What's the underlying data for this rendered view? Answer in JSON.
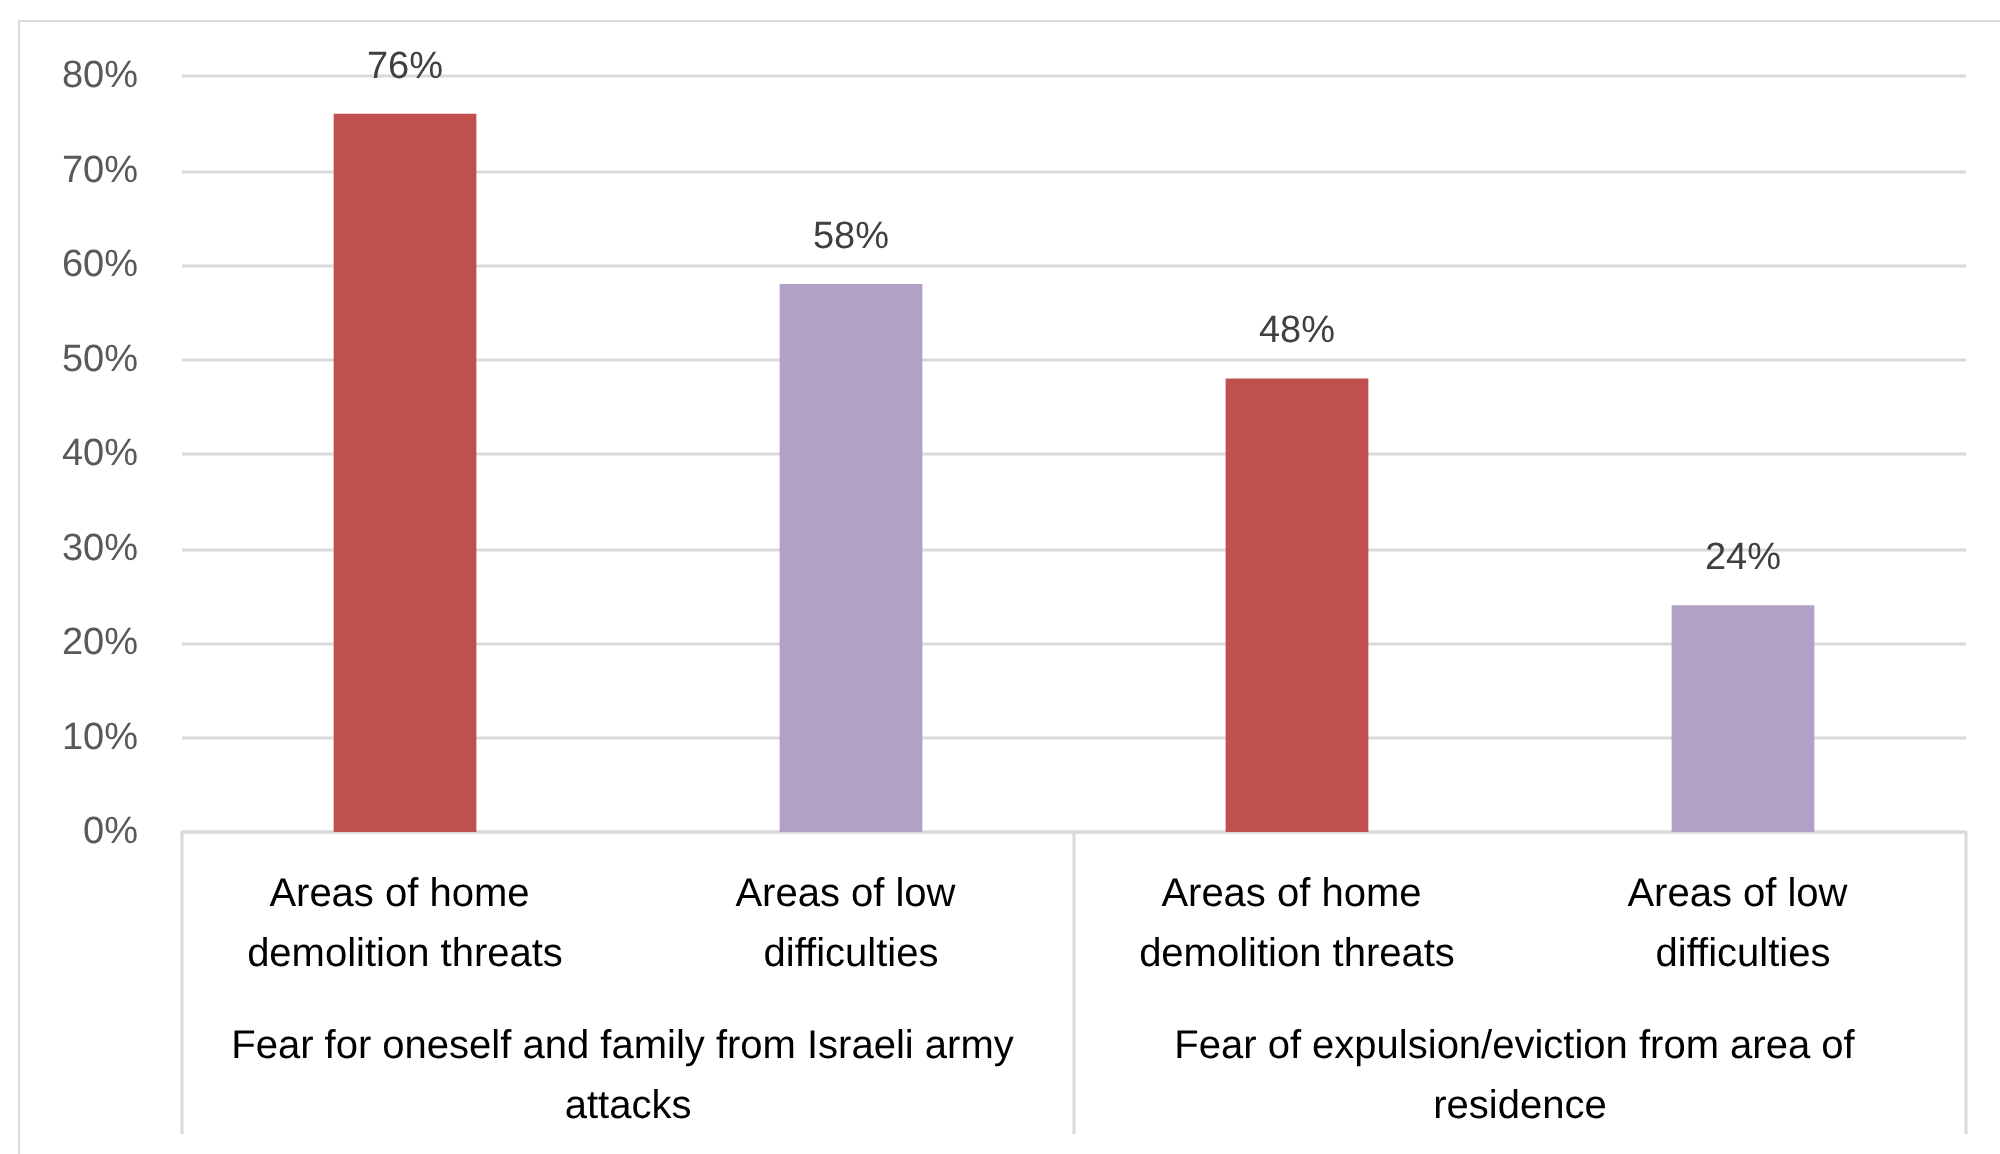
{
  "chart_data": {
    "type": "bar",
    "categories": [
      "Areas of home demolition threats",
      "Areas of low difficulties",
      "Areas of home demolition threats",
      "Areas of low difficulties"
    ],
    "values": [
      76,
      58,
      48,
      24
    ],
    "colors": [
      "#c0504d",
      "#b2a1c7",
      "#c0504d",
      "#b2a1c7"
    ],
    "value_labels": [
      "76%",
      "58%",
      "48%",
      "24%"
    ],
    "ylim": [
      0,
      80
    ],
    "yticks": [
      {
        "value": 0,
        "label": "0%"
      },
      {
        "value": 10,
        "label": "10%"
      },
      {
        "value": 20,
        "label": "20%"
      },
      {
        "value": 30,
        "label": "30%"
      },
      {
        "value": 40,
        "label": "40%"
      },
      {
        "value": 50,
        "label": "50%"
      },
      {
        "value": 60,
        "label": "60%"
      },
      {
        "value": 70,
        "label": "70%"
      },
      {
        "value": 80,
        "label": "80%"
      }
    ],
    "grid": "y",
    "annotations": [
      "Fear for oneself and family from Israeli army attacks",
      "Fear of expulsion/eviction from area of residence"
    ]
  }
}
